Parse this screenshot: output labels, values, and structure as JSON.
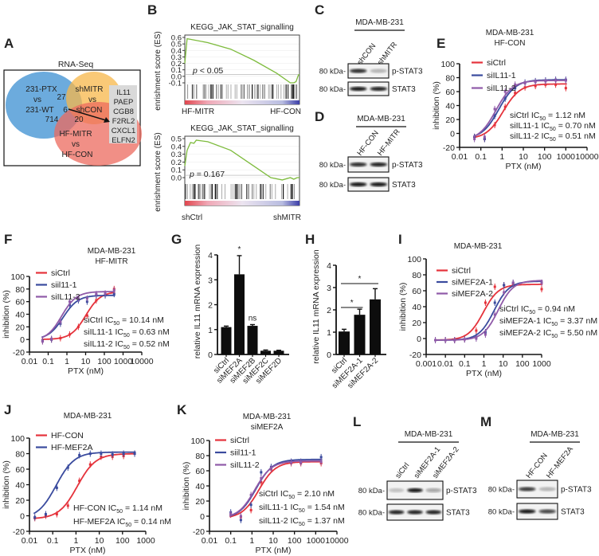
{
  "panel_labels": [
    "A",
    "B",
    "C",
    "D",
    "E",
    "F",
    "G",
    "H",
    "I",
    "J",
    "K",
    "L",
    "M"
  ],
  "colors": {
    "red": "#e5323b",
    "blue": "#3a4b9e",
    "purple": "#8f5aa8",
    "venn_blue": "#3b8fd1",
    "venn_orange": "#f7b74a",
    "venn_red": "#ec6a5e",
    "es_green": "#7dbb3c"
  },
  "chart_data": [
    {
      "panel": "A",
      "type": "venn",
      "title": "RNA-Seq",
      "sets": [
        {
          "lines": [
            "231-PTX",
            "vs",
            "231-WT"
          ],
          "color": "#3b8fd1"
        },
        {
          "lines": [
            "shMITR",
            "vs",
            "shCON"
          ],
          "color": "#f7b74a"
        },
        {
          "lines": [
            "HF-MITR",
            "vs",
            "HF-CON"
          ],
          "color": "#ec6a5e"
        }
      ],
      "overlaps": {
        "ptx_shmitr": "27",
        "all_three": "6",
        "ptx_hfmitr": "714",
        "shmitr_hfmitr": "20"
      },
      "genes": [
        "IL11",
        "PAEP",
        "CGB8",
        "F2RL2",
        "CXCL1",
        "ELFN2"
      ]
    },
    {
      "panel": "B",
      "type": "line",
      "plots": [
        {
          "title": "KEGG_JAK_STAT_signalling",
          "ylabel": "enrishment score (ES)",
          "yticks": [
            "0.6",
            "0.5",
            "0.4",
            "0.3",
            "0.2",
            "0.1",
            "0.0",
            "-0.1"
          ],
          "ylim": [
            -0.1,
            0.6
          ],
          "p_label": "p",
          "p_text": " < 0.05",
          "left_label": "HF-MITR",
          "right_label": "HF-CON",
          "es_curve": [
            [
              0,
              0.2
            ],
            [
              0.02,
              0.58
            ],
            [
              0.05,
              0.57
            ],
            [
              0.2,
              0.52
            ],
            [
              0.4,
              0.42
            ],
            [
              0.6,
              0.25
            ],
            [
              0.8,
              0.05
            ],
            [
              0.92,
              -0.1
            ],
            [
              0.95,
              -0.1
            ],
            [
              0.97,
              -0.08
            ],
            [
              0.99,
              0.02
            ],
            [
              1,
              0.03
            ]
          ]
        },
        {
          "title": "KEGG_JAK_STAT_signalling",
          "ylabel": "enrishment score (ES)",
          "yticks": [
            "0.5",
            "0.4",
            "0.3",
            "0.2",
            "0.1",
            "0.0"
          ],
          "ylim": [
            0.0,
            0.5
          ],
          "p_label": "p",
          "p_text": " = 0.167",
          "left_label": "shCtrl",
          "right_label": "shMITR",
          "es_curve": [
            [
              0,
              0.15
            ],
            [
              0.02,
              0.35
            ],
            [
              0.05,
              0.45
            ],
            [
              0.08,
              0.44
            ],
            [
              0.1,
              0.48
            ],
            [
              0.2,
              0.46
            ],
            [
              0.4,
              0.35
            ],
            [
              0.6,
              0.15
            ],
            [
              0.75,
              0.0
            ],
            [
              0.85,
              -0.03
            ],
            [
              0.92,
              0.0
            ],
            [
              0.95,
              -0.02
            ],
            [
              0.98,
              0.0
            ],
            [
              1,
              0.0
            ]
          ]
        }
      ]
    },
    {
      "panel": "C",
      "type": "western_blot",
      "title": "MDA-MB-231",
      "lanes": [
        "shCON",
        "shMITR"
      ],
      "rows": [
        {
          "label": "p-STAT3",
          "marker": "80 kDa-",
          "intensity": [
            0.85,
            0.25
          ]
        },
        {
          "label": "STAT3",
          "marker": "80 kDa-",
          "intensity": [
            0.95,
            0.9
          ]
        }
      ]
    },
    {
      "panel": "D",
      "type": "western_blot",
      "title": "MDA-MB-231",
      "lanes": [
        "HF-CON",
        "HF-MITR"
      ],
      "rows": [
        {
          "label": "p-STAT3",
          "marker": "80 kDa-",
          "intensity": [
            0.85,
            0.9
          ]
        },
        {
          "label": "STAT3",
          "marker": "80 kDa-",
          "intensity": [
            0.95,
            0.95
          ]
        }
      ]
    },
    {
      "panel": "E",
      "type": "line",
      "title": [
        "MDA-MB-231",
        "HF-CON"
      ],
      "xlabel": "PTX (nM)",
      "ylabel": "inhibition (%)",
      "xscale": "log",
      "xlim": [
        0.01,
        10000
      ],
      "xticks": [
        "0.01",
        "0.1",
        "1",
        "10",
        "100",
        "1000",
        "10000"
      ],
      "ylim": [
        -20,
        100
      ],
      "yticks": [
        "-20",
        "0",
        "20",
        "40",
        "60",
        "80",
        "100"
      ],
      "ic50_symbol": "IC",
      "ic50_sub": "50",
      "unit": "nM",
      "x": [
        0.05,
        0.15,
        0.45,
        1.4,
        4.1,
        12,
        37,
        111,
        333,
        1000
      ],
      "series": [
        {
          "name": "siCtrl",
          "color": "#e5323b",
          "ic50_name": "siCtrl",
          "ic50": "1.12",
          "bottom": -8,
          "top": 71,
          "values": [
            -5,
            -8,
            12,
            38,
            58,
            66,
            68,
            70,
            70,
            65
          ]
        },
        {
          "name": "siIL11-1",
          "color": "#3a4b9e",
          "ic50_name": "siIL11-1",
          "ic50": "0.70",
          "bottom": -8,
          "top": 77,
          "values": [
            -5,
            -8,
            25,
            50,
            65,
            73,
            75,
            76,
            77,
            77
          ]
        },
        {
          "name": "siIL11-2",
          "color": "#8f5aa8",
          "ic50_name": "siIL11-2",
          "ic50": "0.51",
          "bottom": -10,
          "top": 76,
          "values": [
            -8,
            -5,
            35,
            60,
            70,
            72,
            74,
            75,
            76,
            76
          ]
        }
      ]
    },
    {
      "panel": "F",
      "type": "line",
      "title": [
        "MDA-MB-231",
        "HF-MITR"
      ],
      "xlabel": "PTX (nM)",
      "ylabel": "inhibition (%)",
      "xscale": "log",
      "xlim": [
        0.01,
        10000
      ],
      "xticks": [
        "0.01",
        "0.1",
        "1",
        "10",
        "100",
        "1000",
        "10000"
      ],
      "ylim": [
        -20,
        100
      ],
      "yticks": [
        "-20",
        "0",
        "20",
        "40",
        "60",
        "80",
        "100"
      ],
      "ic50_symbol": "IC",
      "ic50_sub": "50",
      "unit": "nM",
      "x": [
        0.05,
        0.15,
        0.45,
        1.4,
        4.1,
        12,
        37,
        111,
        333
      ],
      "series": [
        {
          "name": "siCtrl",
          "color": "#e5323b",
          "ic50_name": "siCtrl",
          "ic50": "10.14",
          "bottom": 0,
          "top": 76,
          "values": [
            -3,
            0,
            2,
            8,
            20,
            38,
            62,
            72,
            80
          ]
        },
        {
          "name": "siil11-1",
          "color": "#3a4b9e",
          "ic50_name": "siIL11-1",
          "ic50": "0.63",
          "bottom": 0,
          "top": 70,
          "values": [
            -2,
            0,
            25,
            55,
            62,
            60,
            70,
            70,
            72
          ]
        },
        {
          "name": "siIL11-2",
          "color": "#8f5aa8",
          "ic50_name": "siIL11-2",
          "ic50": "0.52",
          "bottom": -2,
          "top": 76,
          "values": [
            -3,
            1,
            28,
            60,
            65,
            65,
            72,
            73,
            78
          ]
        }
      ]
    },
    {
      "panel": "G",
      "type": "bar",
      "ylabel": "relative IL11 mRNA expression",
      "ylim": [
        0,
        4
      ],
      "yticks": [
        "0",
        "1",
        "2",
        "3",
        "4"
      ],
      "categories": [
        "siCtrl",
        "siMEF2A",
        "siMEF2B",
        "siMEF2C",
        "siMEF2D"
      ],
      "values": [
        1.1,
        3.22,
        1.15,
        0.15,
        0.15
      ],
      "errors": [
        0.04,
        0.75,
        0.05,
        0.03,
        0.02
      ],
      "annotations": [
        "",
        "*",
        "ns",
        "",
        ""
      ]
    },
    {
      "panel": "H",
      "type": "bar",
      "ylabel": "relative IL11 mRNA expression",
      "ylim": [
        0,
        4
      ],
      "yticks": [
        "0",
        "1",
        "2",
        "3",
        "4"
      ],
      "categories": [
        "siCtrl",
        "siMEF2A-1",
        "siMEF2A-2"
      ],
      "values": [
        1.03,
        1.78,
        2.47
      ],
      "errors": [
        0.1,
        0.25,
        0.48
      ],
      "brackets": [
        {
          "from": 0,
          "to": 1,
          "label": "*"
        },
        {
          "from": 0,
          "to": 2,
          "label": "*"
        }
      ]
    },
    {
      "panel": "I",
      "type": "line",
      "title": [
        "MDA-MB-231"
      ],
      "xlabel": "PTX (nM)",
      "ylabel": "inhibition (%)",
      "xscale": "log",
      "xlim": [
        0.001,
        1000
      ],
      "xticks": [
        "0.001",
        "0.01",
        "0.1",
        "1",
        "10",
        "100",
        "1000"
      ],
      "ylim": [
        -20,
        100
      ],
      "yticks": [
        "-20",
        "0",
        "20",
        "40",
        "60",
        "80",
        "100"
      ],
      "ic50_symbol": "IC",
      "ic50_sub": "50",
      "unit": "nM",
      "x": [
        0.003,
        0.01,
        0.03,
        0.1,
        0.4,
        1.2,
        3.7,
        11,
        33,
        1000
      ],
      "series": [
        {
          "name": "siCtrl",
          "color": "#e5323b",
          "ic50_name": "siCtrl",
          "ic50": "0.94",
          "bottom": -2,
          "top": 68,
          "values": [
            -2,
            -2,
            -2,
            -1,
            10,
            45,
            65,
            67,
            68,
            62
          ]
        },
        {
          "name": "siMEF2A-1",
          "color": "#3a4b9e",
          "ic50_name": "siMEF2A-1",
          "ic50": "3.37",
          "bottom": -2,
          "top": 72,
          "values": [
            -2,
            -2,
            -2,
            -1,
            2,
            8,
            45,
            67,
            70,
            70
          ]
        },
        {
          "name": "siMEF2A-2",
          "color": "#8f5aa8",
          "ic50_name": "siMEF2A-2",
          "ic50": "5.50",
          "bottom": -2,
          "top": 73,
          "values": [
            -2,
            -2,
            -2,
            -1,
            0,
            5,
            30,
            58,
            70,
            70
          ]
        }
      ]
    },
    {
      "panel": "J",
      "type": "line",
      "title": [
        "MDA-MB-231"
      ],
      "xlabel": "PTX (nM)",
      "ylabel": "inhibition (%)",
      "xscale": "log",
      "xlim": [
        0.01,
        1000
      ],
      "xticks": [
        "0.01",
        "0.1",
        "1",
        "10",
        "100",
        "1000"
      ],
      "ylim": [
        -20,
        100
      ],
      "yticks": [
        "-20",
        "0",
        "20",
        "40",
        "60",
        "80",
        "100"
      ],
      "ic50_symbol": "IC",
      "ic50_sub": "50",
      "unit": "nM",
      "x": [
        0.017,
        0.05,
        0.15,
        0.45,
        1.4,
        4.1,
        12,
        37,
        111,
        333
      ],
      "series": [
        {
          "name": "HF-CON",
          "color": "#e5323b",
          "ic50_name": "HF-CON",
          "ic50": "1.14",
          "bottom": -4,
          "top": 80,
          "values": [
            -3,
            0,
            2,
            13,
            45,
            66,
            76,
            76,
            77,
            80
          ]
        },
        {
          "name": "HF-MEF2A",
          "color": "#3a4b9e",
          "ic50_name": "HF-MEF2A",
          "ic50": "0.14",
          "bottom": -4,
          "top": 82,
          "values": [
            -2,
            2,
            36,
            62,
            78,
            80,
            80,
            79,
            80,
            80
          ]
        }
      ]
    },
    {
      "panel": "K",
      "type": "line",
      "title": [
        "MDA-MB-231",
        "siMEF2A"
      ],
      "xlabel": "PTX (nM)",
      "ylabel": "inhibition (%)",
      "xscale": "log",
      "xlim": [
        0.01,
        10000
      ],
      "xticks": [
        "0.01",
        "0.1",
        "1",
        "10",
        "100",
        "1000",
        "10000"
      ],
      "ylim": [
        -20,
        100
      ],
      "yticks": [
        "-20",
        "0",
        "20",
        "40",
        "60",
        "80",
        "100"
      ],
      "ic50_symbol": "IC",
      "ic50_sub": "50",
      "unit": "nM",
      "x": [
        0.1,
        0.3,
        0.9,
        2.7,
        8,
        70,
        200,
        1800
      ],
      "series": [
        {
          "name": "siCtrl",
          "color": "#e5323b",
          "ic50_name": "siCtrl",
          "ic50": "2.10",
          "bottom": -3,
          "top": 72,
          "values": [
            2,
            -1,
            8,
            45,
            62,
            70,
            70,
            70
          ]
        },
        {
          "name": "siil11-1",
          "color": "#3a4b9e",
          "ic50_name": "siIL11-1",
          "ic50": "1.54",
          "bottom": -3,
          "top": 75,
          "values": [
            5,
            -5,
            15,
            58,
            65,
            72,
            72,
            78
          ]
        },
        {
          "name": "siIL11-2",
          "color": "#8f5aa8",
          "ic50_name": "siIL11-2",
          "ic50": "1.37",
          "bottom": -3,
          "top": 73,
          "values": [
            3,
            0,
            28,
            50,
            63,
            71,
            71,
            72
          ]
        }
      ]
    },
    {
      "panel": "L",
      "type": "western_blot",
      "title": "MDA-MB-231",
      "lanes": [
        "siCtrl",
        "siMEF2A-1",
        "siMEF2A-2"
      ],
      "rows": [
        {
          "label": "p-STAT3",
          "marker": "80 kDa-",
          "intensity": [
            0.2,
            0.95,
            0.35
          ]
        },
        {
          "label": "STAT3",
          "marker": "80 kDa-",
          "intensity": [
            0.9,
            0.9,
            0.9
          ]
        }
      ]
    },
    {
      "panel": "M",
      "type": "western_blot",
      "title": "MDA-MB-231",
      "lanes": [
        "HF-CON",
        "HF-MEF2A"
      ],
      "rows": [
        {
          "label": "p-STAT3",
          "marker": "80 kDa-",
          "intensity": [
            0.8,
            0.25
          ]
        },
        {
          "label": "STAT3",
          "marker": "80 kDa-",
          "intensity": [
            0.95,
            0.75
          ]
        }
      ]
    }
  ]
}
